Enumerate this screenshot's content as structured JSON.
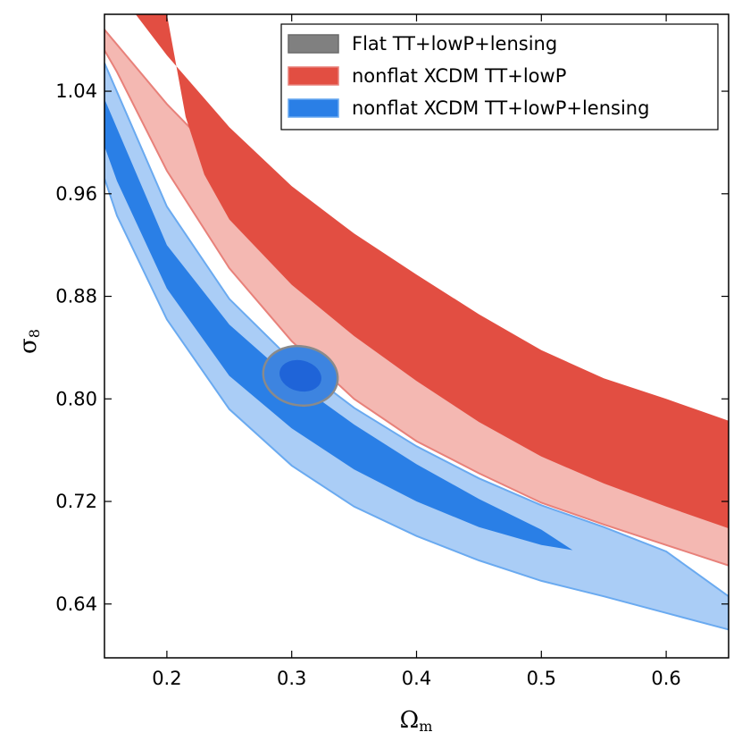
{
  "chart_data": {
    "type": "contour",
    "xlabel": "Ωm",
    "ylabel": "σ8",
    "xlim": [
      0.15,
      0.65
    ],
    "ylim": [
      0.598,
      1.1
    ],
    "xticks": [
      0.2,
      0.3,
      0.4,
      0.5,
      0.6
    ],
    "xtick_labels": [
      "0.2",
      "0.3",
      "0.4",
      "0.5",
      "0.6"
    ],
    "yticks": [
      0.64,
      0.72,
      0.8,
      0.88,
      0.96,
      1.04
    ],
    "ytick_labels": [
      "0.64",
      "0.72",
      "0.80",
      "0.88",
      "0.96",
      "1.04"
    ],
    "legend_position": "top-right",
    "series": [
      {
        "name": "Flat TT+lowP+lensing",
        "color": "#808080",
        "center": [
          0.307,
          0.818
        ],
        "sigma1": {
          "rx": 0.017,
          "ry": 0.012,
          "fill": "#1f64d8",
          "stroke": "#8a8a8a"
        },
        "sigma2": {
          "rx": 0.03,
          "ry": 0.023,
          "fill": "#3d84e0",
          "stroke": "#8a8a8a"
        }
      },
      {
        "name": "nonflat XCDM TT+lowP",
        "color": "#e24e42",
        "outer_fill": "#f4b8b2",
        "inner_fill": "#e24e42",
        "edge": "#e8817a",
        "outer_upper": [
          [
            0.15,
            1.088
          ],
          [
            0.2,
            1.03
          ],
          [
            0.25,
            0.98
          ],
          [
            0.3,
            0.935
          ],
          [
            0.35,
            0.896
          ],
          [
            0.4,
            0.862
          ],
          [
            0.45,
            0.833
          ],
          [
            0.5,
            0.811
          ],
          [
            0.55,
            0.797
          ],
          [
            0.6,
            0.786
          ],
          [
            0.65,
            0.777
          ]
        ],
        "outer_lower": [
          [
            0.65,
            0.67
          ],
          [
            0.6,
            0.686
          ],
          [
            0.55,
            0.702
          ],
          [
            0.5,
            0.719
          ],
          [
            0.45,
            0.742
          ],
          [
            0.4,
            0.767
          ],
          [
            0.35,
            0.8
          ],
          [
            0.3,
            0.845
          ],
          [
            0.25,
            0.902
          ],
          [
            0.2,
            0.978
          ],
          [
            0.16,
            1.055
          ],
          [
            0.15,
            1.072
          ]
        ],
        "inner_upper": [
          [
            0.175,
            1.1
          ],
          [
            0.2,
            1.068
          ],
          [
            0.25,
            1.012
          ],
          [
            0.3,
            0.966
          ],
          [
            0.35,
            0.929
          ],
          [
            0.4,
            0.897
          ],
          [
            0.45,
            0.866
          ],
          [
            0.5,
            0.838
          ],
          [
            0.55,
            0.816
          ],
          [
            0.6,
            0.8
          ],
          [
            0.65,
            0.783
          ]
        ],
        "inner_lower": [
          [
            0.65,
            0.699
          ],
          [
            0.6,
            0.716
          ],
          [
            0.55,
            0.734
          ],
          [
            0.5,
            0.755
          ],
          [
            0.45,
            0.782
          ],
          [
            0.4,
            0.814
          ],
          [
            0.35,
            0.849
          ],
          [
            0.3,
            0.889
          ],
          [
            0.25,
            0.94
          ],
          [
            0.23,
            0.975
          ],
          [
            0.215,
            1.02
          ],
          [
            0.2,
            1.1
          ]
        ]
      },
      {
        "name": "nonflat XCDM TT+lowP+lensing",
        "color": "#2a7fe6",
        "outer_fill": "#aacdf6",
        "inner_fill": "#2a7fe6",
        "edge": "#6aaaf0",
        "outer_upper": [
          [
            0.15,
            1.062
          ],
          [
            0.2,
            0.95
          ],
          [
            0.25,
            0.878
          ],
          [
            0.3,
            0.83
          ],
          [
            0.35,
            0.793
          ],
          [
            0.4,
            0.763
          ],
          [
            0.45,
            0.738
          ],
          [
            0.5,
            0.717
          ],
          [
            0.55,
            0.7
          ],
          [
            0.6,
            0.681
          ],
          [
            0.65,
            0.646
          ]
        ],
        "outer_lower": [
          [
            0.65,
            0.62
          ],
          [
            0.6,
            0.633
          ],
          [
            0.55,
            0.646
          ],
          [
            0.5,
            0.658
          ],
          [
            0.45,
            0.674
          ],
          [
            0.4,
            0.693
          ],
          [
            0.35,
            0.716
          ],
          [
            0.3,
            0.748
          ],
          [
            0.25,
            0.792
          ],
          [
            0.2,
            0.862
          ],
          [
            0.16,
            0.943
          ],
          [
            0.15,
            0.972
          ]
        ],
        "inner_upper": [
          [
            0.15,
            1.034
          ],
          [
            0.2,
            0.92
          ],
          [
            0.25,
            0.858
          ],
          [
            0.3,
            0.815
          ],
          [
            0.35,
            0.78
          ],
          [
            0.4,
            0.749
          ],
          [
            0.45,
            0.722
          ],
          [
            0.5,
            0.698
          ],
          [
            0.525,
            0.682
          ]
        ],
        "inner_lower": [
          [
            0.525,
            0.682
          ],
          [
            0.5,
            0.686
          ],
          [
            0.45,
            0.7
          ],
          [
            0.4,
            0.72
          ],
          [
            0.35,
            0.745
          ],
          [
            0.3,
            0.777
          ],
          [
            0.25,
            0.818
          ],
          [
            0.2,
            0.886
          ],
          [
            0.16,
            0.97
          ],
          [
            0.15,
            0.997
          ]
        ]
      }
    ]
  }
}
